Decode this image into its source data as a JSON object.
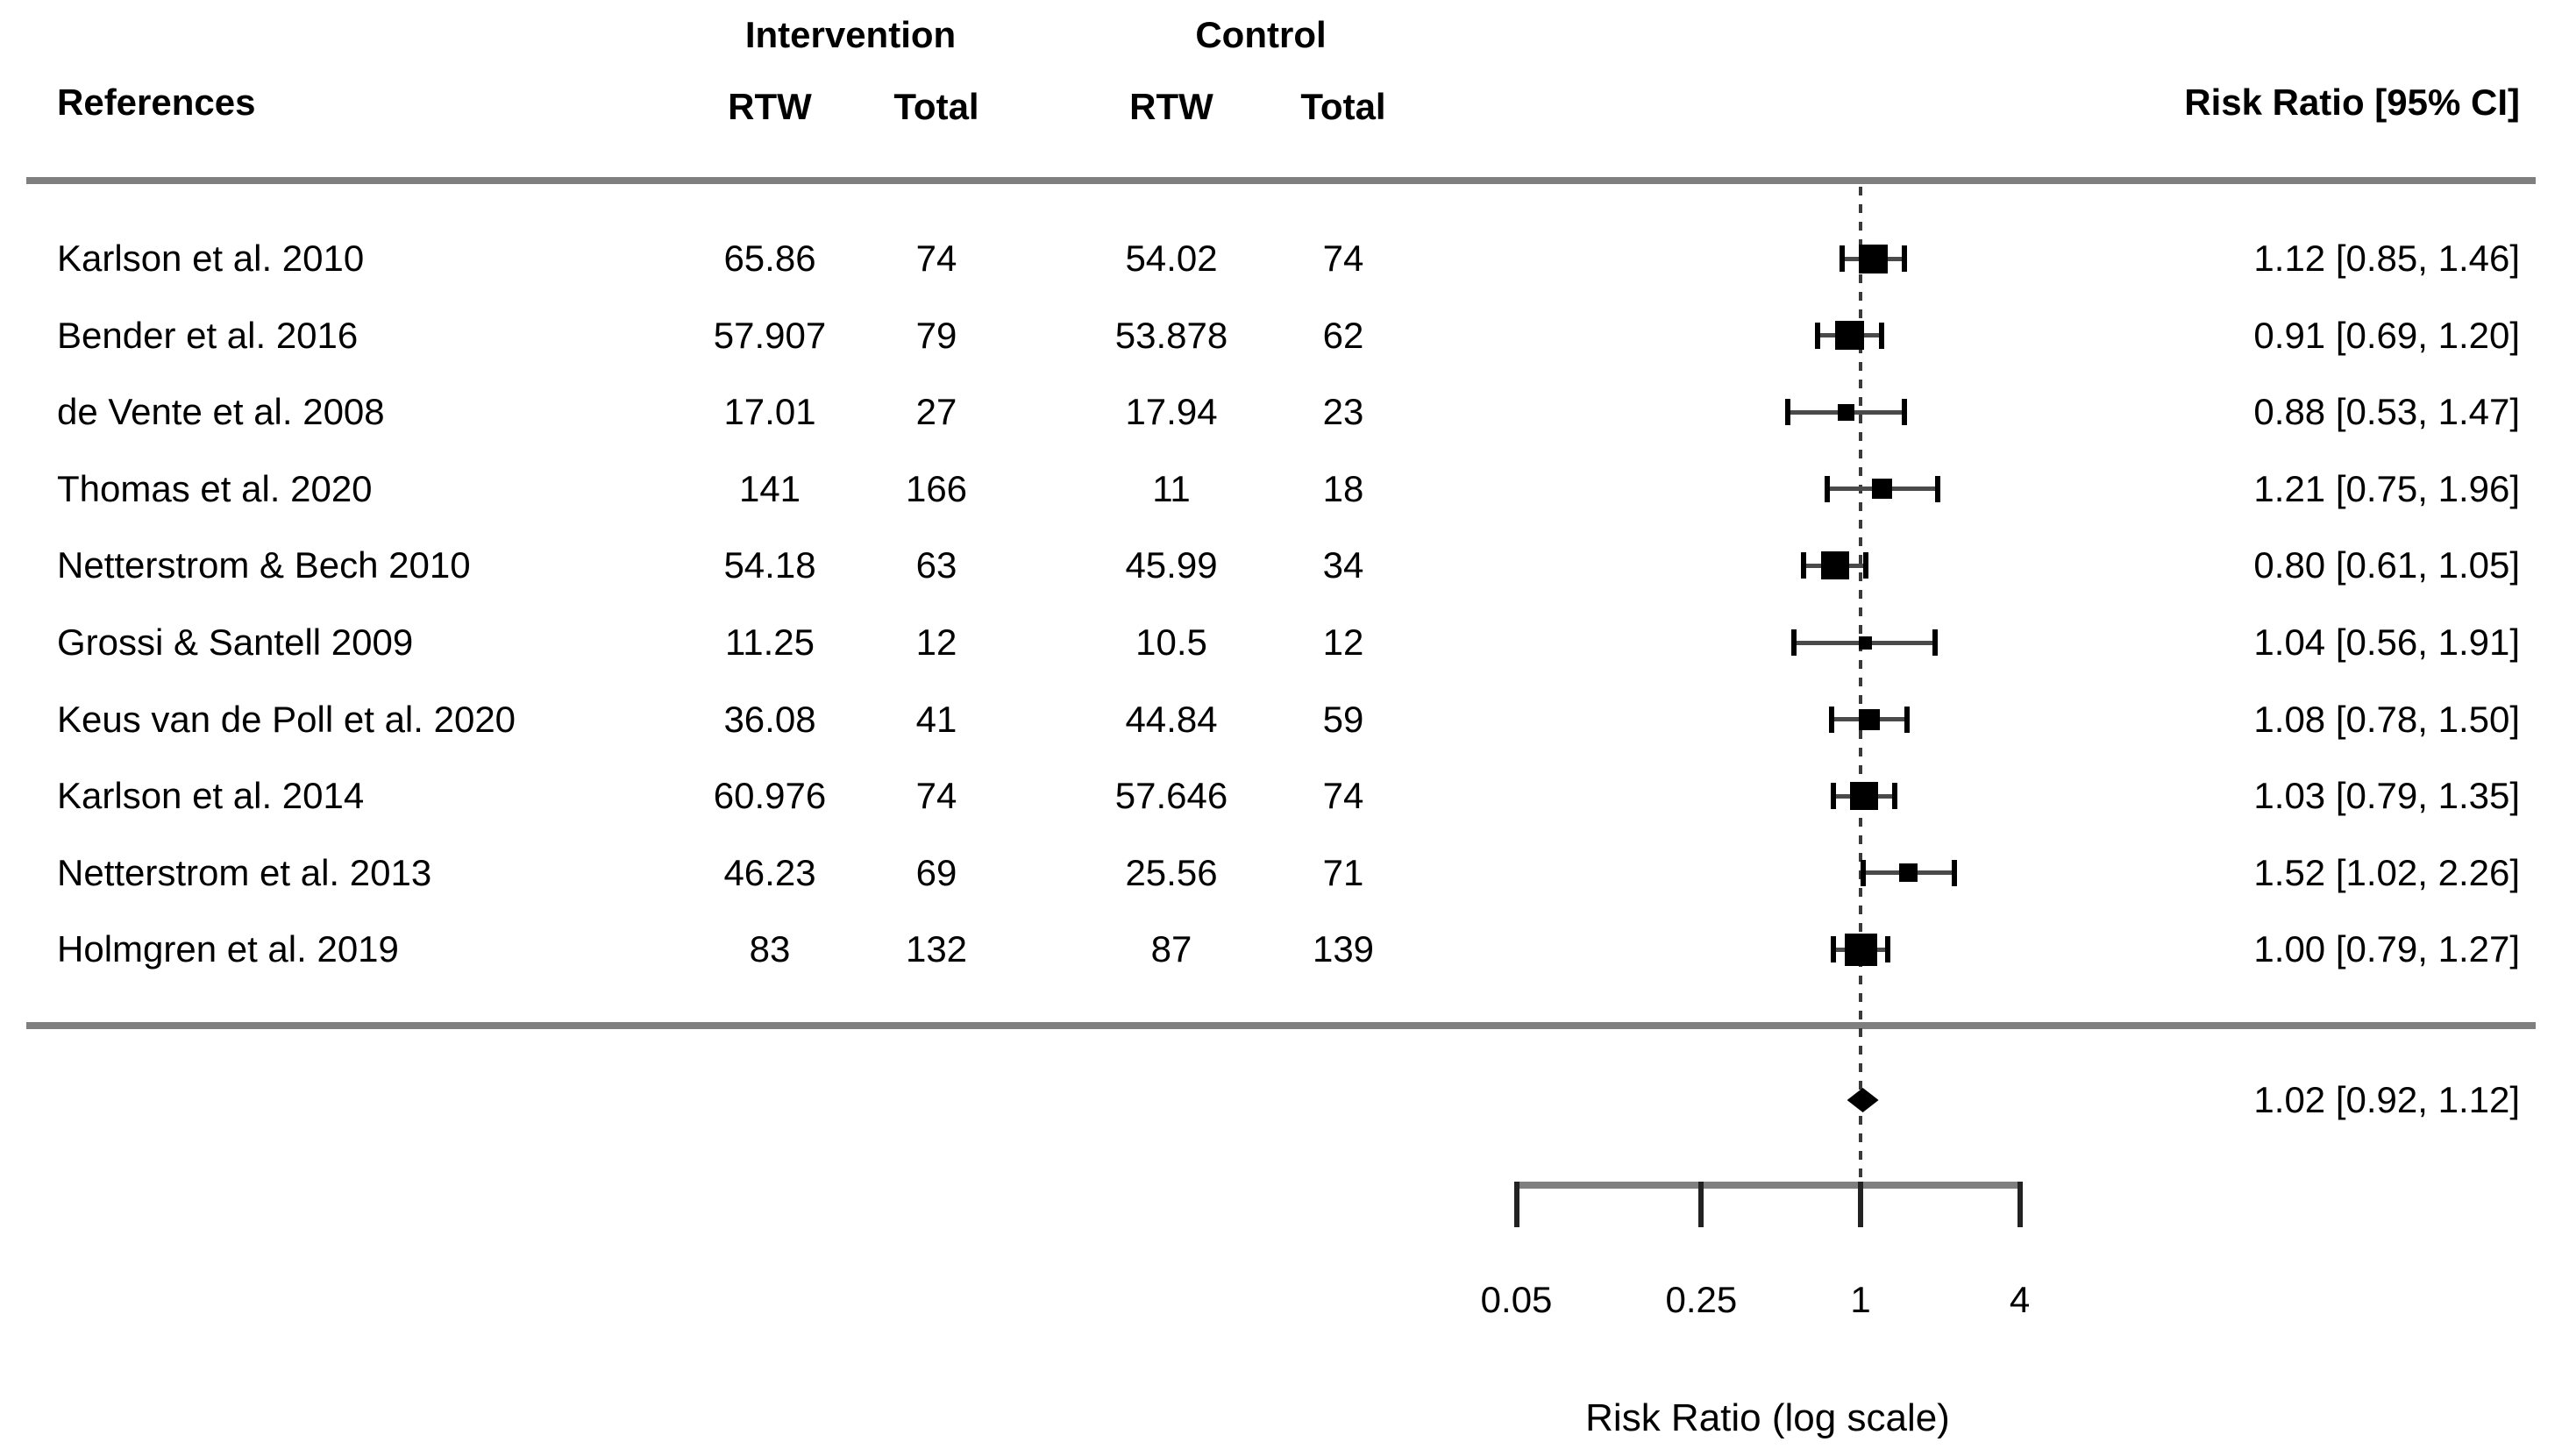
{
  "chart_data": {
    "type": "forest",
    "references_header": "References",
    "group_headers": [
      {
        "label": "Intervention"
      },
      {
        "label": "Control"
      }
    ],
    "subcolumns": [
      "RTW",
      "Total",
      "RTW",
      "Total"
    ],
    "effect_header": "Risk Ratio [95% CI]",
    "axis": {
      "label": "Risk Ratio (log scale)",
      "scale": "log",
      "ticks": [
        0.05,
        0.25,
        1,
        4
      ],
      "tick_labels": [
        "0.05",
        "0.25",
        "1",
        "4"
      ],
      "reference_line": 1
    },
    "studies": [
      {
        "name": "Karlson et al. 2010",
        "int_rtw": "65.86",
        "int_total": "74",
        "ctl_rtw": "54.02",
        "ctl_total": "74",
        "rr": 1.12,
        "ci_low": 0.85,
        "ci_high": 1.46,
        "label": "1.12 [0.85, 1.46]",
        "marker_size": 33
      },
      {
        "name": "Bender et al. 2016",
        "int_rtw": "57.907",
        "int_total": "79",
        "ctl_rtw": "53.878",
        "ctl_total": "62",
        "rr": 0.91,
        "ci_low": 0.69,
        "ci_high": 1.2,
        "label": "0.91 [0.69, 1.20]",
        "marker_size": 33
      },
      {
        "name": "de Vente et al. 2008",
        "int_rtw": "17.01",
        "int_total": "27",
        "ctl_rtw": "17.94",
        "ctl_total": "23",
        "rr": 0.88,
        "ci_low": 0.53,
        "ci_high": 1.47,
        "label": "0.88 [0.53, 1.47]",
        "marker_size": 19
      },
      {
        "name": "Thomas et al. 2020",
        "int_rtw": "141",
        "int_total": "166",
        "ctl_rtw": "11",
        "ctl_total": "18",
        "rr": 1.21,
        "ci_low": 0.75,
        "ci_high": 1.96,
        "label": "1.21 [0.75, 1.96]",
        "marker_size": 23
      },
      {
        "name": "Netterstrom & Bech 2010",
        "int_rtw": "54.18",
        "int_total": "63",
        "ctl_rtw": "45.99",
        "ctl_total": "34",
        "rr": 0.8,
        "ci_low": 0.61,
        "ci_high": 1.05,
        "label": "0.80 [0.61, 1.05]",
        "marker_size": 32
      },
      {
        "name": "Grossi & Santell 2009",
        "int_rtw": "11.25",
        "int_total": "12",
        "ctl_rtw": "10.5",
        "ctl_total": "12",
        "rr": 1.04,
        "ci_low": 0.56,
        "ci_high": 1.91,
        "label": "1.04 [0.56, 1.91]",
        "marker_size": 15
      },
      {
        "name": "Keus van de Poll et al. 2020",
        "int_rtw": "36.08",
        "int_total": "41",
        "ctl_rtw": "44.84",
        "ctl_total": "59",
        "rr": 1.08,
        "ci_low": 0.78,
        "ci_high": 1.5,
        "label": "1.08 [0.78, 1.50]",
        "marker_size": 24
      },
      {
        "name": "Karlson et al. 2014",
        "int_rtw": "60.976",
        "int_total": "74",
        "ctl_rtw": "57.646",
        "ctl_total": "74",
        "rr": 1.03,
        "ci_low": 0.79,
        "ci_high": 1.35,
        "label": "1.03 [0.79, 1.35]",
        "marker_size": 32
      },
      {
        "name": "Netterstrom et al. 2013",
        "int_rtw": "46.23",
        "int_total": "69",
        "ctl_rtw": "25.56",
        "ctl_total": "71",
        "rr": 1.52,
        "ci_low": 1.02,
        "ci_high": 2.26,
        "label": "1.52 [1.02, 2.26]",
        "marker_size": 21
      },
      {
        "name": "Holmgren et al. 2019",
        "int_rtw": "83",
        "int_total": "132",
        "ctl_rtw": "87",
        "ctl_total": "139",
        "rr": 1.0,
        "ci_low": 0.79,
        "ci_high": 1.27,
        "label": "1.00 [0.79, 1.27]",
        "marker_size": 37
      }
    ],
    "summary": {
      "rr": 1.02,
      "ci_low": 0.92,
      "ci_high": 1.12,
      "label": "1.02 [0.92, 1.12]"
    }
  }
}
